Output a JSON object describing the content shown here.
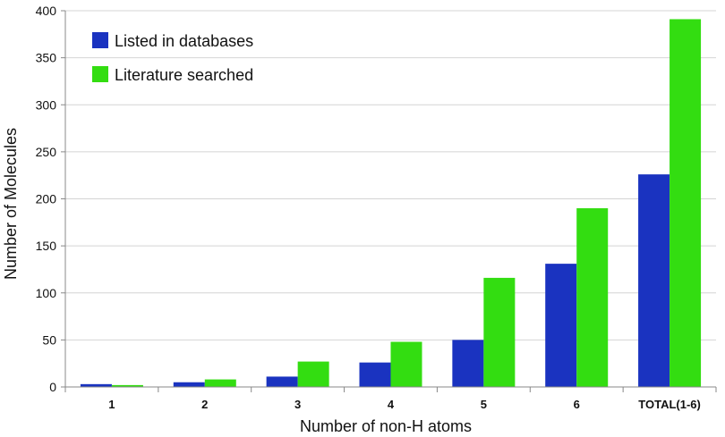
{
  "chart_data": {
    "type": "bar",
    "title": "",
    "xlabel": "Number of non-H atoms",
    "ylabel": "Number of Molecules",
    "ylim": [
      0,
      400
    ],
    "yticks": [
      0,
      50,
      100,
      150,
      200,
      250,
      300,
      350,
      400
    ],
    "categories": [
      "1",
      "2",
      "3",
      "4",
      "5",
      "6",
      "TOTAL(1-6)"
    ],
    "series": [
      {
        "name": "Listed in databases",
        "color": "#1a33c0",
        "values": [
          3,
          5,
          11,
          26,
          50,
          131,
          226
        ]
      },
      {
        "name": "Literature searched",
        "color": "#33dd11",
        "values": [
          2,
          8,
          27,
          48,
          116,
          190,
          391
        ]
      }
    ],
    "grid": true,
    "legend_position": "top-left"
  }
}
